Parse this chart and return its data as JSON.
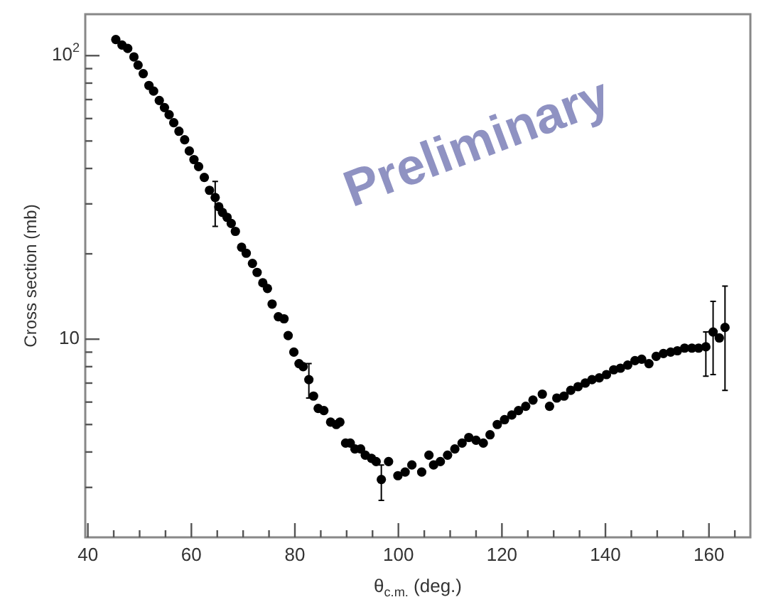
{
  "chart_data": {
    "type": "scatter",
    "xlabel": "θ$_{c.m.}$ (deg.)",
    "ylabel": "Cross section (mb)",
    "annotations": [
      "Preliminary"
    ],
    "log": true,
    "grid": false,
    "legend": false,
    "marker": "circle",
    "xlim": [
      39.5,
      168
    ],
    "ylim": [
      2,
      140
    ],
    "xticks": [
      40,
      {
        "value": 45,
        "label": null
      },
      {
        "value": 50,
        "label": null
      },
      {
        "value": 55,
        "label": null
      },
      60,
      {
        "value": 65,
        "label": null
      },
      {
        "value": 70,
        "label": null
      },
      {
        "value": 75,
        "label": null
      },
      80,
      {
        "value": 85,
        "label": null
      },
      {
        "value": 90,
        "label": null
      },
      {
        "value": 95,
        "label": null
      },
      100,
      {
        "value": 105,
        "label": null
      },
      {
        "value": 110,
        "label": null
      },
      {
        "value": 115,
        "label": null
      },
      120,
      {
        "value": 125,
        "label": null
      },
      {
        "value": 130,
        "label": null
      },
      {
        "value": 135,
        "label": null
      },
      140,
      {
        "value": 145,
        "label": null
      },
      {
        "value": 150,
        "label": null
      },
      {
        "value": 155,
        "label": null
      },
      160,
      {
        "value": 165,
        "label": null
      }
    ],
    "yticks": [
      {
        "value": 3,
        "label": null
      },
      {
        "value": 4,
        "label": null
      },
      {
        "value": 5,
        "label": null
      },
      {
        "value": 6,
        "label": null
      },
      {
        "value": 7,
        "label": null
      },
      {
        "value": 8,
        "label": null
      },
      {
        "value": 9,
        "label": null
      },
      10,
      {
        "value": 20,
        "label": null
      },
      {
        "value": 30,
        "label": null
      },
      {
        "value": 40,
        "label": null
      },
      {
        "value": 50,
        "label": null
      },
      {
        "value": 60,
        "label": null
      },
      {
        "value": 70,
        "label": null
      },
      {
        "value": 80,
        "label": null
      },
      {
        "value": 90,
        "label": null
      },
      {
        "value": 100,
        "label": "10$^{2}$"
      }
    ],
    "series": [
      {
        "color": "#000000",
        "x": [
          45.4,
          46.6,
          47.7,
          48.9,
          49.7,
          50.7,
          51.8,
          52.7,
          53.8,
          54.8,
          55.7,
          56.6,
          57.6,
          58.7,
          59.6,
          60.5,
          61.4,
          62.5,
          63.5,
          64.6,
          65.3,
          66.0,
          66.9,
          67.7,
          68.5,
          69.7,
          70.6,
          71.8,
          72.7,
          73.8,
          74.7,
          75.6,
          76.8,
          77.9,
          78.7,
          79.8,
          80.8,
          81.6,
          82.7,
          83.6,
          84.5,
          85.6,
          86.9,
          88.0,
          88.7,
          89.8,
          90.7,
          91.6,
          92.7,
          93.6,
          94.8,
          95.7,
          96.7,
          98.1,
          99.9,
          101.3,
          102.6,
          104.5,
          105.9,
          106.8,
          108.1,
          109.5,
          110.9,
          112.3,
          113.6,
          115.0,
          116.4,
          117.7,
          119.1,
          120.5,
          121.9,
          123.2,
          124.6,
          126.0,
          127.8,
          129.2,
          130.6,
          132.0,
          133.3,
          134.7,
          136.1,
          137.4,
          138.8,
          140.2,
          141.6,
          142.9,
          144.3,
          145.7,
          147.0,
          148.4,
          149.8,
          151.2,
          152.6,
          153.9,
          155.3,
          156.7,
          158.0,
          159.4,
          160.8,
          162.0,
          163.1
        ],
        "values": [
          114,
          109,
          106,
          99,
          92.6,
          86.4,
          78.5,
          75,
          69.5,
          65.6,
          61.9,
          58,
          54.1,
          50.5,
          46.1,
          43,
          40.6,
          37.2,
          33.5,
          31.6,
          29.3,
          28,
          26.9,
          25.6,
          24,
          21.1,
          20.1,
          18.5,
          17.2,
          15.8,
          15.1,
          13.3,
          12.0,
          11.8,
          10.3,
          9.0,
          8.2,
          8.0,
          7.2,
          6.3,
          5.7,
          5.6,
          5.1,
          5.0,
          5.1,
          4.3,
          4.3,
          4.1,
          4.1,
          3.9,
          3.8,
          3.7,
          3.2,
          3.7,
          3.3,
          3.4,
          3.6,
          3.4,
          3.9,
          3.6,
          3.7,
          3.9,
          4.1,
          4.3,
          4.5,
          4.4,
          4.3,
          4.6,
          5.0,
          5.2,
          5.4,
          5.6,
          5.8,
          6.1,
          6.4,
          5.8,
          6.2,
          6.3,
          6.6,
          6.8,
          7.0,
          7.2,
          7.3,
          7.5,
          7.8,
          7.9,
          8.1,
          8.4,
          8.5,
          8.2,
          8.7,
          8.9,
          9.0,
          9.1,
          9.3,
          9.3,
          9.3,
          9.4,
          10.6,
          10.1,
          11.0
        ],
        "errors": [
          null,
          null,
          null,
          null,
          null,
          null,
          null,
          null,
          null,
          null,
          null,
          null,
          null,
          null,
          null,
          null,
          null,
          null,
          null,
          [
            25,
            36
          ],
          null,
          null,
          null,
          null,
          null,
          null,
          null,
          null,
          null,
          null,
          null,
          null,
          null,
          null,
          null,
          null,
          null,
          null,
          [
            6.2,
            8.2
          ],
          null,
          null,
          null,
          null,
          null,
          null,
          null,
          null,
          null,
          null,
          null,
          null,
          null,
          [
            2.7,
            3.6
          ],
          null,
          null,
          null,
          null,
          null,
          null,
          null,
          null,
          null,
          null,
          null,
          null,
          null,
          null,
          null,
          null,
          null,
          null,
          null,
          null,
          null,
          null,
          null,
          null,
          null,
          null,
          null,
          null,
          null,
          null,
          null,
          null,
          null,
          null,
          null,
          null,
          null,
          null,
          null,
          null,
          null,
          null,
          null,
          null,
          [
            7.4,
            10.6
          ],
          [
            7.5,
            13.6
          ],
          null,
          [
            6.6,
            15.4
          ]
        ]
      }
    ]
  }
}
